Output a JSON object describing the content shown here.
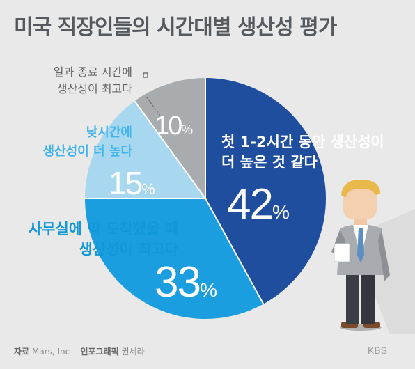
{
  "title": "미국 직장인들의 시간대별 생산성 평가",
  "chart_data": {
    "type": "pie",
    "title": "미국 직장인들의 시간대별 생산성 평가",
    "start_angle_deg": 0,
    "direction": "clockwise",
    "slices": [
      {
        "label_lines": [
          "첫 1-2시간 동안 생산성이",
          "더 높은 것 같다"
        ],
        "value": 42,
        "display": "42",
        "color": "#1f4e9e"
      },
      {
        "label_lines": [
          "사무실에 막 도착했을 때",
          "생산성이 최고다"
        ],
        "value": 33,
        "display": "33",
        "color": "#1a9ee0"
      },
      {
        "label_lines": [
          "낮시간에",
          "생산성이 더 높다"
        ],
        "value": 15,
        "display": "15",
        "color": "#a8d8f0"
      },
      {
        "label_lines": [
          "일과 종료 시간에",
          "생산성이 최고다"
        ],
        "value": 10,
        "display": "10",
        "color": "#a9acae"
      }
    ],
    "percent_symbol": "%"
  },
  "footer": {
    "source_label": "자료",
    "source_value": "Mars, Inc",
    "graphic_label": "인포그래픽",
    "graphic_value": "권세라"
  },
  "logo_text": "KBS"
}
